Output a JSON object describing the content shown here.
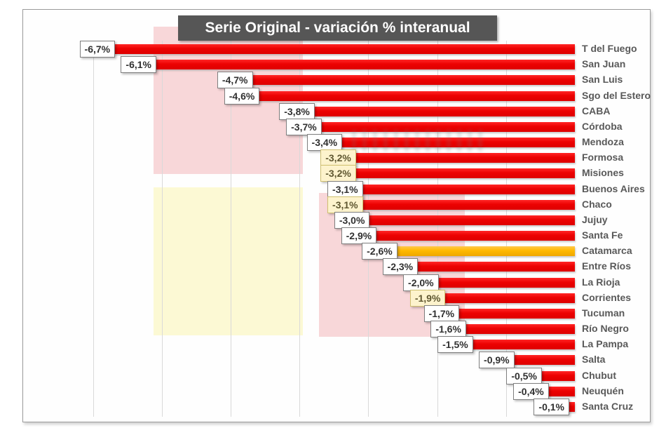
{
  "chart_data": {
    "type": "bar",
    "orientation": "horizontal",
    "title": "Serie Original - variación % interanual",
    "value_unit": "%",
    "value_format": "negative percent, comma decimal separator",
    "axis": {
      "min": -7,
      "max": 0,
      "gridline_step": 1,
      "grid": true,
      "category_labels_position": "right"
    },
    "series": [
      {
        "category": "T del Fuego",
        "value": -6.7,
        "label": "-6,7%"
      },
      {
        "category": "San Juan",
        "value": -6.1,
        "label": "-6,1%"
      },
      {
        "category": "San Luis",
        "value": -4.7,
        "label": "-4,7%"
      },
      {
        "category": "Sgo del Estero",
        "value": -4.6,
        "label": "-4,6%"
      },
      {
        "category": "CABA",
        "value": -3.8,
        "label": "-3,8%"
      },
      {
        "category": "Córdoba",
        "value": -3.7,
        "label": "-3,7%"
      },
      {
        "category": "Mendoza",
        "value": -3.4,
        "label": "-3,4%"
      },
      {
        "category": "Formosa",
        "value": -3.2,
        "label": "-3,2%",
        "label_highlight": true
      },
      {
        "category": "Misiones",
        "value": -3.2,
        "label": "-3,2%",
        "label_highlight": true
      },
      {
        "category": "Buenos Aires",
        "value": -3.1,
        "label": "-3,1%"
      },
      {
        "category": "Chaco",
        "value": -3.1,
        "label": "-3,1%",
        "label_highlight": true
      },
      {
        "category": "Jujuy",
        "value": -3.0,
        "label": "-3,0%"
      },
      {
        "category": "Santa Fe",
        "value": -2.9,
        "label": "-2,9%"
      },
      {
        "category": "Catamarca",
        "value": -2.6,
        "label": "-2,6%",
        "bar_highlight": true
      },
      {
        "category": "Entre Ríos",
        "value": -2.3,
        "label": "-2,3%"
      },
      {
        "category": "La Rioja",
        "value": -2.0,
        "label": "-2,0%"
      },
      {
        "category": "Corrientes",
        "value": -1.9,
        "label": "-1,9%",
        "label_highlight": true
      },
      {
        "category": "Tucuman",
        "value": -1.7,
        "label": "-1,7%"
      },
      {
        "category": "Río Negro",
        "value": -1.6,
        "label": "-1,6%"
      },
      {
        "category": "La Pampa",
        "value": -1.5,
        "label": "-1,5%"
      },
      {
        "category": "Salta",
        "value": -0.9,
        "label": "-0,9%"
      },
      {
        "category": "Chubut",
        "value": -0.5,
        "label": "-0,5%"
      },
      {
        "category": "Neuquén",
        "value": -0.4,
        "label": "-0,4%"
      },
      {
        "category": "Santa Cruz",
        "value": -0.1,
        "label": "-0,1%"
      }
    ],
    "colors": {
      "bar": "#ec0202",
      "bar_highlight": "#ffb900",
      "title_bg": "#565656",
      "title_text": "#ffffff",
      "value_label_bg": "#ffffff",
      "value_label_highlight_bg": "#fdf3cd",
      "category_text": "#595959",
      "region_pink": "#f8d7d9",
      "region_yellow": "#fcf9d4",
      "gridline": "#d9d9d9"
    }
  }
}
